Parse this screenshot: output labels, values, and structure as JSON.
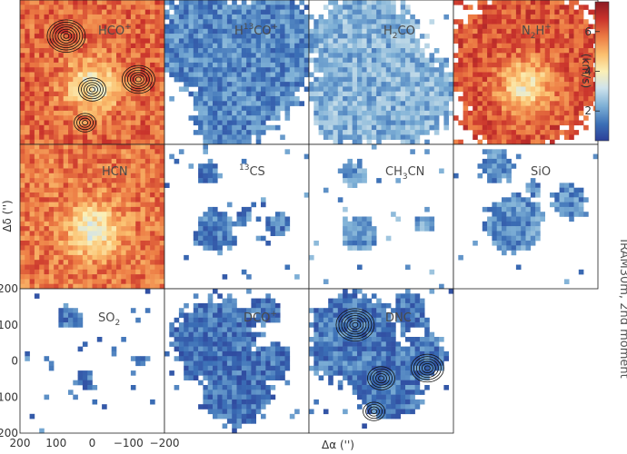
{
  "chart_data": {
    "type": "heatmap",
    "side_label": "IRAM30m, 2nd moment",
    "colorbar": {
      "label": "(km/s)",
      "range": [
        0.5,
        7.5
      ],
      "ticks": [
        "2",
        "4",
        "6"
      ],
      "colors": [
        "#2c3f99",
        "#3b6fb6",
        "#7eb0d6",
        "#cfe3ec",
        "#fbefb5",
        "#fbc06f",
        "#ec7a43",
        "#c8312b",
        "#8c1c24"
      ]
    },
    "x_axis": {
      "label": "Δα ('')",
      "ticks": [
        "200",
        "100",
        "0",
        "−100",
        "−200"
      ]
    },
    "y_axis": {
      "label": "Δδ ('')",
      "ticks": [
        "200",
        "100",
        "0",
        "−100",
        "−200"
      ]
    },
    "panels": [
      {
        "name": "HCO+",
        "row": 0,
        "col": 0,
        "level": 6.0,
        "contours": true
      },
      {
        "name": "H13CO+",
        "row": 0,
        "col": 1,
        "level": 1.7
      },
      {
        "name": "H2CO",
        "row": 0,
        "col": 2,
        "level": 2.3
      },
      {
        "name": "N2H+",
        "row": 0,
        "col": 3,
        "level": 6.2
      },
      {
        "name": "HCN",
        "row": 1,
        "col": 0,
        "level": 5.8
      },
      {
        "name": "13CS",
        "row": 1,
        "col": 1,
        "level": 1.6
      },
      {
        "name": "CH3CN",
        "row": 1,
        "col": 2,
        "level": 2.0
      },
      {
        "name": "SiO",
        "row": 1,
        "col": 3,
        "level": 1.8
      },
      {
        "name": "SO2",
        "row": 2,
        "col": 0,
        "level": 1.5
      },
      {
        "name": "DCO+",
        "row": 2,
        "col": 1,
        "level": 1.4
      },
      {
        "name": "DNC",
        "row": 2,
        "col": 2,
        "level": 1.5,
        "contours": true
      }
    ]
  }
}
